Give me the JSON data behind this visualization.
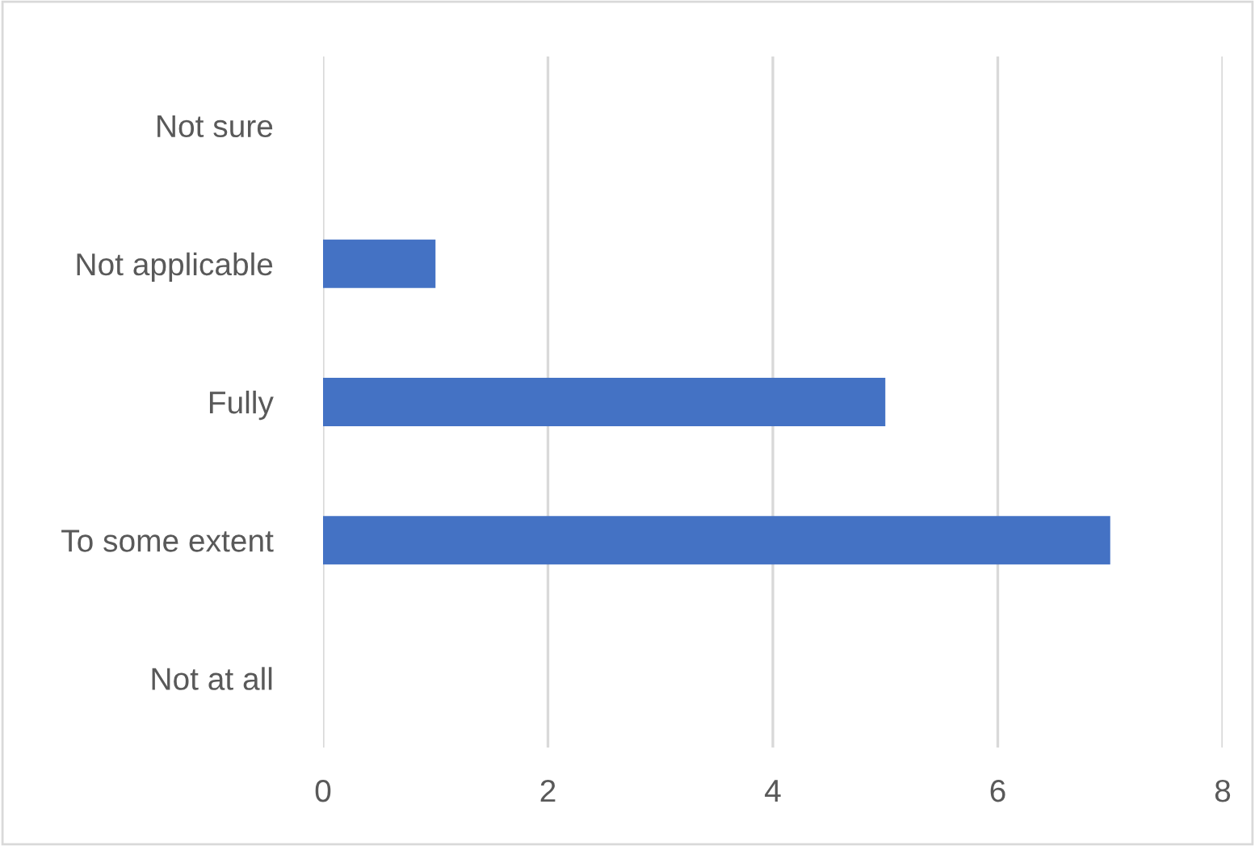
{
  "chart_data": {
    "type": "bar",
    "orientation": "horizontal",
    "categories": [
      "Not sure",
      "Not applicable",
      "Fully",
      "To some extent",
      "Not at all"
    ],
    "values": [
      0,
      1,
      5,
      7,
      0
    ],
    "color": "#4472c4",
    "xlim": [
      0,
      8
    ],
    "xticks": [
      0,
      2,
      4,
      6,
      8
    ],
    "grid": "x",
    "legend": false
  }
}
